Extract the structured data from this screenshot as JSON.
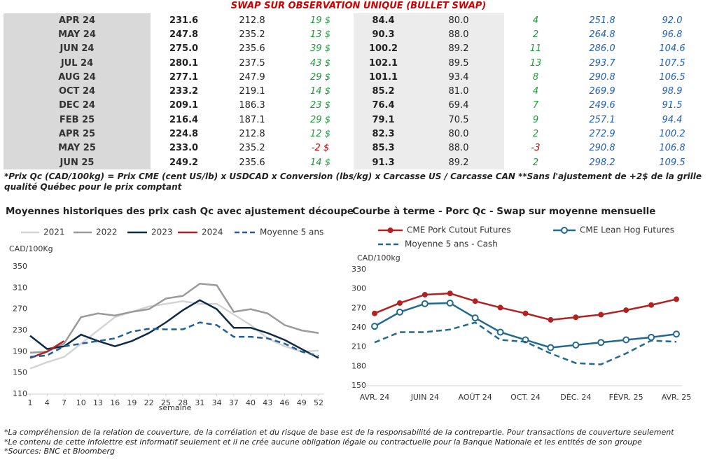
{
  "header": {
    "title": "SWAP SUR OBSERVATION UNIQUE (BULLET SWAP)"
  },
  "table": {
    "rows": [
      [
        "APR 24",
        "231.6",
        "212.8",
        "19 $",
        "84.4",
        "80.0",
        "4",
        "251.8",
        "92.0"
      ],
      [
        "MAY 24",
        "247.8",
        "235.2",
        "13 $",
        "90.3",
        "88.0",
        "2",
        "264.8",
        "96.8"
      ],
      [
        "JUN 24",
        "275.0",
        "235.6",
        "39 $",
        "100.2",
        "89.2",
        "11",
        "286.0",
        "104.6"
      ],
      [
        "JUL 24",
        "280.1",
        "237.5",
        "43 $",
        "102.1",
        "89.5",
        "13",
        "293.7",
        "107.5"
      ],
      [
        "AUG 24",
        "277.1",
        "247.9",
        "29 $",
        "101.1",
        "93.4",
        "8",
        "290.8",
        "106.5"
      ],
      [
        "OCT 24",
        "233.2",
        "219.1",
        "14 $",
        "85.2",
        "81.0",
        "4",
        "269.9",
        "98.9"
      ],
      [
        "DEC 24",
        "209.1",
        "186.3",
        "23 $",
        "76.4",
        "69.4",
        "7",
        "249.6",
        "91.5"
      ],
      [
        "FEB 25",
        "216.4",
        "187.1",
        "29 $",
        "79.1",
        "70.5",
        "9",
        "257.1",
        "94.4"
      ],
      [
        "APR 25",
        "224.8",
        "212.8",
        "12 $",
        "82.3",
        "80.0",
        "2",
        "272.9",
        "100.2"
      ],
      [
        "MAY 25",
        "233.0",
        "235.2",
        "-2 $",
        "85.3",
        "88.0",
        "-3",
        "290.8",
        "106.8"
      ],
      [
        "JUN 25",
        "249.2",
        "235.6",
        "14 $",
        "91.3",
        "89.2",
        "2",
        "298.2",
        "109.5"
      ]
    ]
  },
  "note": "*Prix Qc (CAD/100kg) = Prix CME (cent US/lb) x USDCAD x Conversion (lbs/kg) x Carcasse US / Carcasse CAN **Sans l'ajustement de +2$ de la grille qualité Québec pour le prix comptant",
  "chart_data": [
    {
      "type": "line",
      "title": "Moyennes historiques des prix cash Qc avec ajustement découpe",
      "y_label": "CAD/100Kg",
      "x_label": "semaine",
      "x": [
        1,
        4,
        7,
        10,
        13,
        16,
        19,
        22,
        25,
        28,
        31,
        34,
        37,
        40,
        43,
        46,
        49,
        52
      ],
      "xlim": [
        1,
        52
      ],
      "xticks": [
        1,
        4,
        7,
        10,
        13,
        16,
        19,
        22,
        25,
        28,
        31,
        34,
        37,
        40,
        43,
        46,
        49,
        52
      ],
      "ylim": [
        110,
        350
      ],
      "yticks": [
        110,
        150,
        190,
        230,
        270,
        310,
        350
      ],
      "series": [
        {
          "name": "2021",
          "color": "#d4d4d4",
          "values": [
            158,
            170,
            180,
            205,
            230,
            255,
            265,
            275,
            280,
            285,
            280,
            280,
            260,
            240,
            215,
            200,
            190,
            192
          ]
        },
        {
          "name": "2022",
          "color": "#9a9a9a",
          "values": [
            188,
            190,
            205,
            255,
            262,
            258,
            265,
            270,
            290,
            295,
            318,
            315,
            265,
            270,
            262,
            240,
            230,
            225
          ]
        },
        {
          "name": "2023",
          "color": "#0f2a47",
          "values": [
            220,
            195,
            200,
            222,
            210,
            200,
            210,
            225,
            245,
            268,
            287,
            270,
            235,
            235,
            225,
            212,
            195,
            178
          ]
        },
        {
          "name": "2024",
          "color": "#b22222",
          "values": [
            178,
            190,
            210,
            null,
            null,
            null,
            null,
            null,
            null,
            null,
            null,
            null,
            null,
            null,
            null,
            null,
            null,
            null
          ]
        },
        {
          "name": "Moyenne 5 ans",
          "color": "#1f5f9a",
          "dashed": true,
          "values": [
            180,
            183,
            200,
            205,
            210,
            215,
            228,
            233,
            232,
            232,
            245,
            240,
            218,
            218,
            215,
            205,
            190,
            182
          ]
        }
      ]
    },
    {
      "type": "line",
      "title": "Courbe à terme - Porc Qc - Swap sur moyenne mensuelle",
      "y_label": "CAD/100kg",
      "categories": [
        "AVR. 24",
        null,
        "JUIN 24",
        null,
        "AOÛT 24",
        null,
        "OCT. 24",
        null,
        "DÉC. 24",
        null,
        "FÉVR. 25",
        null,
        "AVR. 25"
      ],
      "ylim": [
        150,
        330
      ],
      "yticks": [
        150,
        180,
        210,
        240,
        270,
        300,
        330
      ],
      "series": [
        {
          "name": "CME Pork Cutout Futures",
          "color": "#b22222",
          "marker": "filled",
          "values": [
            262,
            278,
            291,
            293,
            281,
            271,
            262,
            252,
            256,
            260,
            267,
            275,
            284
          ]
        },
        {
          "name": "CME Lean Hog Futures",
          "color": "#23698f",
          "marker": "hollow",
          "values": [
            242,
            264,
            277,
            278,
            255,
            233,
            221,
            209,
            213,
            217,
            221,
            225,
            230
          ]
        },
        {
          "name": "Moyenne 5 ans - Cash",
          "color": "#23698f",
          "dashed": true,
          "values": [
            217,
            233,
            233,
            237,
            248,
            221,
            218,
            200,
            185,
            183,
            200,
            220,
            218
          ]
        }
      ]
    }
  ],
  "footer": [
    "*La compréhension de la relation de couverture, de la corrélation et du risque de base est de la responsabilité de la contrepartie. Pour transactions de couverture seulement",
    "*Le contenu de cette infolettre est informatif seulement et il ne crée aucune obligation légale ou contractuelle pour la Banque Nationale et les entités de son groupe",
    "*Sources: BNC et Bloomberg"
  ]
}
